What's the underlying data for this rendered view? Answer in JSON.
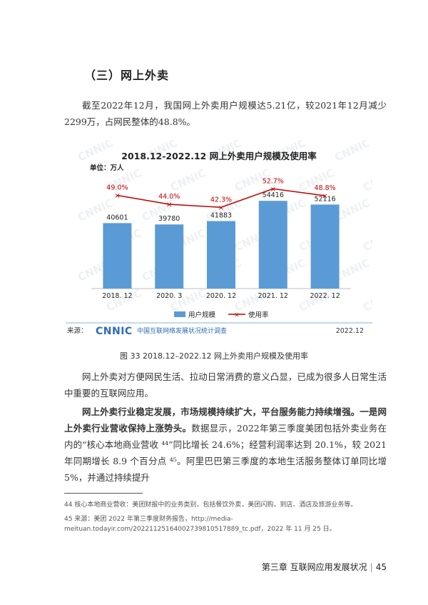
{
  "section_title": "（三）网上外卖",
  "para1": "截至2022年12月，我国网上外卖用户规模达5.21亿，较2021年12月减少2299万，占网民整体的48.8%。",
  "chart": {
    "title": "2018.12-2022.12 网上外卖用户规模及使用率",
    "unit": "单位：万人",
    "legend_bar": "用户规模",
    "legend_line": "使用率",
    "source_label": "来源：",
    "source_logo": "CNNIC",
    "source_org": "中国互联网络发展状况统计调查",
    "source_date": "2022.12",
    "watermark": "CNNIC",
    "bar_color": "#5b9bd5",
    "line_color": "#c00000"
  },
  "chart_data": {
    "type": "bar",
    "title": "2018.12-2022.12 网上外卖用户规模及使用率",
    "categories": [
      "2018. 12",
      "2020. 3",
      "2020. 12",
      "2021. 12",
      "2022. 12"
    ],
    "series": [
      {
        "name": "用户规模",
        "type": "bar",
        "values": [
          40601,
          39780,
          41883,
          54416,
          52116
        ]
      },
      {
        "name": "使用率",
        "type": "line",
        "values": [
          49.0,
          44.0,
          42.3,
          52.7,
          48.8
        ],
        "labels": [
          "49.0%",
          "44.0%",
          "42.3%",
          "52.7%",
          "48.8%"
        ]
      }
    ],
    "bar_labels": [
      "40601",
      "39780",
      "41883",
      "54416",
      "52116"
    ],
    "ylabel": "单位：万人",
    "ylim": [
      0,
      70000
    ],
    "y2lim": [
      20,
      60
    ],
    "legend": "bottom",
    "grid": false
  },
  "caption": "图 33  2018.12–2022.12 网上外卖用户规模及使用率",
  "para2": "网上外卖对方便网民生活、拉动日常消费的意义凸显，已成为很多人日常生活中重要的互联网应用。",
  "para3_bold": "网上外卖行业稳定发展，市场规模持续扩大，平台服务能力持续增强。一是网上外卖行业营收保持上涨势头。",
  "para3_rest": "数据显示，2022年第三季度美团包括外卖业务在内的“核心本地商业营收 ⁴⁴”同比增长 24.6%；经营利润率达到 20.1%，较 2021 年同期增长 8.9 个百分点 ⁴⁵。阿里巴巴第三季度的本地生活服务整体订单同比增 5%，并通过持续提升",
  "footnote44": "44   核心本地商业营收：美团财报中的业务类别，包括餐饮外卖，美团闪购，到店、酒店及旅游业务等。",
  "footnote45": "45   来源：美团 2022 年第三季度财务报告，http://media-meituan.todayir.com/20221125164002739810517889_tc.pdf，2022 年 11 月 25 日。",
  "footer": {
    "chapter": "第三章  互联网应用发展状况",
    "separator": "|",
    "page": "45"
  }
}
